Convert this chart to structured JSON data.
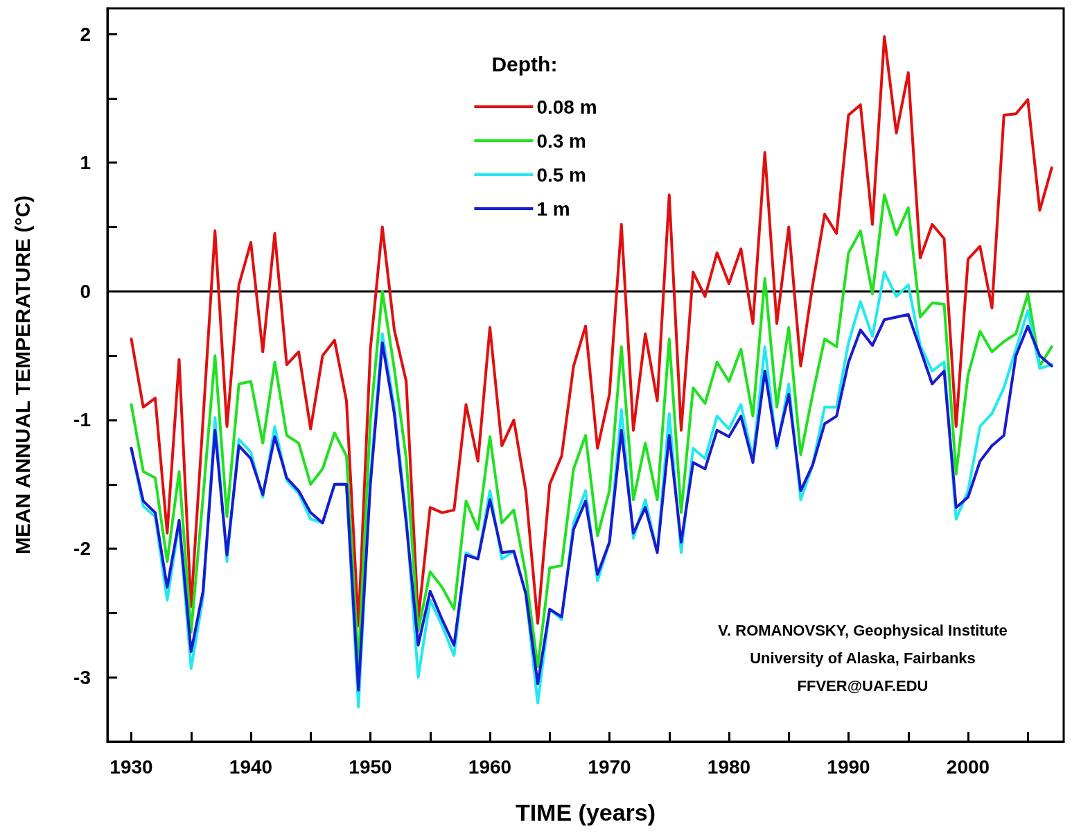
{
  "chart_data": {
    "type": "line",
    "xlabel": "TIME (years)",
    "ylabel": "MEAN ANNUAL TEMPERATURE (°C)",
    "legend_title": "Depth:",
    "legend": "top",
    "marker": "none",
    "line_style": "solid",
    "grid": false,
    "x": [
      1930,
      1931,
      1932,
      1933,
      1934,
      1935,
      1936,
      1937,
      1938,
      1939,
      1940,
      1941,
      1942,
      1943,
      1944,
      1945,
      1946,
      1947,
      1948,
      1949,
      1950,
      1951,
      1952,
      1953,
      1954,
      1955,
      1956,
      1957,
      1958,
      1959,
      1960,
      1961,
      1962,
      1963,
      1964,
      1965,
      1966,
      1967,
      1968,
      1969,
      1970,
      1971,
      1972,
      1973,
      1974,
      1975,
      1976,
      1977,
      1978,
      1979,
      1980,
      1981,
      1982,
      1983,
      1984,
      1985,
      1986,
      1987,
      1988,
      1989,
      1990,
      1991,
      1992,
      1993,
      1994,
      1995,
      1996,
      1997,
      1998,
      1999,
      2000,
      2001,
      2002,
      2003,
      2004,
      2005,
      2006,
      2007
    ],
    "series": [
      {
        "name": "0.08 m",
        "color": "#e01010",
        "values": [
          -0.37,
          -0.9,
          -0.83,
          -1.88,
          -0.53,
          -2.45,
          -1.0,
          0.47,
          -1.05,
          0.05,
          0.38,
          -0.47,
          0.45,
          -0.57,
          -0.47,
          -1.07,
          -0.5,
          -0.38,
          -0.85,
          -2.6,
          -0.45,
          0.5,
          -0.3,
          -0.7,
          -2.55,
          -1.68,
          -1.72,
          -1.7,
          -0.88,
          -1.32,
          -0.28,
          -1.2,
          -1.0,
          -1.55,
          -2.58,
          -1.5,
          -1.28,
          -0.58,
          -0.27,
          -1.22,
          -0.8,
          0.52,
          -1.08,
          -0.33,
          -0.85,
          0.75,
          -1.08,
          0.15,
          -0.04,
          0.3,
          0.06,
          0.33,
          -0.25,
          1.08,
          -0.25,
          0.5,
          -0.58,
          0.05,
          0.6,
          0.45,
          1.37,
          1.45,
          0.52,
          1.98,
          1.23,
          1.7,
          0.26,
          0.52,
          0.41,
          -1.05,
          0.25,
          0.35,
          -0.13,
          1.37,
          1.38,
          1.49,
          0.63,
          0.96
        ]
      },
      {
        "name": "0.3 m",
        "color": "#22e022",
        "values": [
          -0.88,
          -1.4,
          -1.45,
          -2.1,
          -1.4,
          -2.65,
          -1.6,
          -0.5,
          -1.75,
          -0.72,
          -0.7,
          -1.18,
          -0.55,
          -1.12,
          -1.18,
          -1.5,
          -1.38,
          -1.1,
          -1.28,
          -2.9,
          -1.0,
          0.0,
          -0.6,
          -1.3,
          -2.64,
          -2.18,
          -2.3,
          -2.47,
          -1.63,
          -1.85,
          -1.13,
          -1.8,
          -1.7,
          -2.2,
          -2.92,
          -2.15,
          -2.13,
          -1.38,
          -1.12,
          -1.9,
          -1.55,
          -0.43,
          -1.62,
          -1.18,
          -1.62,
          -0.37,
          -1.72,
          -0.75,
          -0.87,
          -0.55,
          -0.7,
          -0.45,
          -0.97,
          0.1,
          -0.9,
          -0.28,
          -1.27,
          -0.8,
          -0.37,
          -0.43,
          0.3,
          0.47,
          -0.02,
          0.75,
          0.44,
          0.65,
          -0.2,
          -0.09,
          -0.1,
          -1.42,
          -0.65,
          -0.31,
          -0.47,
          -0.39,
          -0.33,
          -0.02,
          -0.58,
          -0.43
        ]
      },
      {
        "name": "0.5 m",
        "color": "#22e8f0",
        "values": [
          -1.22,
          -1.67,
          -1.75,
          -2.4,
          -1.8,
          -2.93,
          -2.38,
          -0.98,
          -2.1,
          -1.15,
          -1.25,
          -1.6,
          -1.05,
          -1.47,
          -1.57,
          -1.77,
          -1.8,
          -1.5,
          -1.5,
          -3.23,
          -1.45,
          -0.33,
          -0.9,
          -1.75,
          -3.0,
          -2.4,
          -2.6,
          -2.83,
          -2.03,
          -2.08,
          -1.55,
          -2.08,
          -2.02,
          -2.35,
          -3.2,
          -2.47,
          -2.55,
          -1.8,
          -1.55,
          -2.25,
          -1.95,
          -0.92,
          -1.92,
          -1.62,
          -2.03,
          -0.95,
          -2.03,
          -1.22,
          -1.3,
          -0.97,
          -1.07,
          -0.88,
          -1.3,
          -0.43,
          -1.22,
          -0.72,
          -1.62,
          -1.35,
          -0.9,
          -0.9,
          -0.4,
          -0.08,
          -0.35,
          0.15,
          -0.04,
          0.05,
          -0.42,
          -0.62,
          -0.55,
          -1.77,
          -1.55,
          -1.05,
          -0.95,
          -0.75,
          -0.45,
          -0.15,
          -0.6,
          -0.57
        ]
      },
      {
        "name": "1 m",
        "color": "#1a1ad0",
        "values": [
          -1.22,
          -1.63,
          -1.72,
          -2.3,
          -1.78,
          -2.8,
          -2.33,
          -1.08,
          -2.05,
          -1.2,
          -1.3,
          -1.58,
          -1.13,
          -1.45,
          -1.55,
          -1.72,
          -1.8,
          -1.5,
          -1.5,
          -3.1,
          -1.5,
          -0.4,
          -0.95,
          -1.8,
          -2.75,
          -2.33,
          -2.55,
          -2.75,
          -2.05,
          -2.08,
          -1.62,
          -2.03,
          -2.02,
          -2.35,
          -3.05,
          -2.47,
          -2.53,
          -1.85,
          -1.63,
          -2.2,
          -1.95,
          -1.08,
          -1.88,
          -1.68,
          -2.03,
          -1.12,
          -1.95,
          -1.33,
          -1.38,
          -1.08,
          -1.13,
          -0.97,
          -1.33,
          -0.62,
          -1.2,
          -0.8,
          -1.55,
          -1.35,
          -1.03,
          -0.97,
          -0.55,
          -0.3,
          -0.42,
          -0.22,
          -0.2,
          -0.18,
          -0.45,
          -0.72,
          -0.62,
          -1.68,
          -1.6,
          -1.32,
          -1.2,
          -1.12,
          -0.5,
          -0.27,
          -0.5,
          -0.58
        ]
      }
    ],
    "xlim": [
      1928,
      2008
    ],
    "xticks": [
      1930,
      {
        "value": 1935,
        "label": null
      },
      1940,
      {
        "value": 1945,
        "label": null
      },
      1950,
      {
        "value": 1955,
        "label": null
      },
      1960,
      {
        "value": 1965,
        "label": null
      },
      1970,
      {
        "value": 1975,
        "label": null
      },
      1980,
      {
        "value": 1985,
        "label": null
      },
      1990,
      {
        "value": 1995,
        "label": null
      },
      2000,
      {
        "value": 2005,
        "label": null
      }
    ],
    "ylim": [
      -3.5,
      2.2
    ],
    "yticks": [
      {
        "value": -3.5,
        "label": null
      },
      -3,
      {
        "value": -2.5,
        "label": null
      },
      -2,
      {
        "value": -1.5,
        "label": null
      },
      -1,
      {
        "value": -0.5,
        "label": null
      },
      0,
      {
        "value": 0.5,
        "label": null
      },
      1,
      {
        "value": 1.5,
        "label": null
      },
      2
    ],
    "ref_lines": [
      {
        "axis": "y",
        "value": 0,
        "color": "#000000",
        "line_style": "solid"
      }
    ],
    "annotations": [
      "V. ROMANOVSKY, Geophysical Institute",
      "University of Alaska, Fairbanks",
      "FFVER@UAF.EDU"
    ]
  }
}
